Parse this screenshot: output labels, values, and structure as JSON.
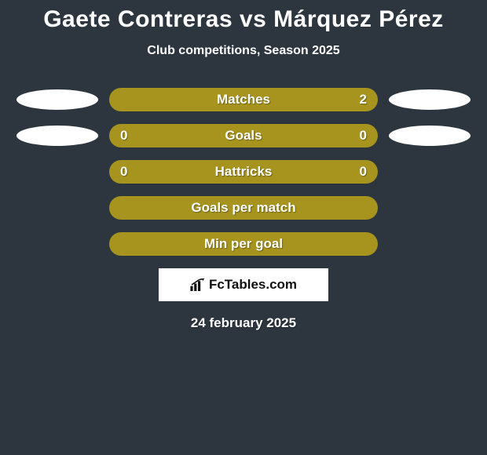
{
  "title": "Gaete Contreras vs Márquez Pérez",
  "subtitle": "Club competitions, Season 2025",
  "rows": [
    {
      "label": "Matches",
      "left": "",
      "right": "2",
      "color": "#a6941f",
      "left_ellipse": true,
      "right_ellipse": true
    },
    {
      "label": "Goals",
      "left": "0",
      "right": "0",
      "color": "#a6941f",
      "left_ellipse": true,
      "right_ellipse": true
    },
    {
      "label": "Hattricks",
      "left": "0",
      "right": "0",
      "color": "#a6941f",
      "left_ellipse": false,
      "right_ellipse": false
    },
    {
      "label": "Goals per match",
      "left": "",
      "right": "",
      "color": "#a6941f",
      "left_ellipse": false,
      "right_ellipse": false
    },
    {
      "label": "Min per goal",
      "left": "",
      "right": "",
      "color": "#a6941f",
      "left_ellipse": false,
      "right_ellipse": false
    }
  ],
  "logo_text": "FcTables.com",
  "date": "24 february 2025",
  "colors": {
    "background": "#2d363f",
    "ellipse": "#ffffff",
    "text": "#ffffff",
    "logo_bg": "#ffffff",
    "logo_text": "#111111"
  }
}
